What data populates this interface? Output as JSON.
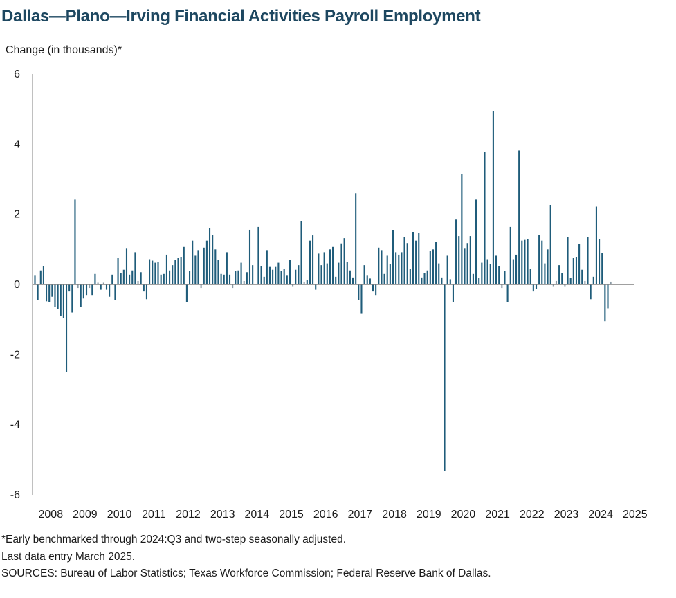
{
  "title": "Dallas—Plano—Irving Financial Activities Payroll Employment",
  "notes": [
    "*Early benchmarked through 2024:Q3 and two-step seasonally adjusted.",
    "Last data entry March 2025.",
    "SOURCES: Bureau of Labor Statistics; Texas Workforce Commission; Federal Reserve Bank of Dallas."
  ],
  "colors": {
    "bar": "#1f5c7a",
    "bar_light": "#8a9aa5",
    "axis": "#808080",
    "title": "#1d4760"
  },
  "chart_data": {
    "type": "bar",
    "title": "Dallas—Plano—Irving Financial Activities Payroll Employment",
    "ylabel": "Change (in thousands)*",
    "xlabel": "",
    "ylim": [
      -6,
      6
    ],
    "yticks": [
      6,
      4,
      2,
      0,
      -2,
      -4,
      -6
    ],
    "ytick_labels": [
      "6",
      "4",
      "2",
      "0",
      "-2",
      "-4",
      "-6"
    ],
    "start": "2008-01",
    "end": "2025-03",
    "year_labels": [
      "2008",
      "2009",
      "2010",
      "2011",
      "2012",
      "2013",
      "2014",
      "2015",
      "2016",
      "2017",
      "2018",
      "2019",
      "2020",
      "2021",
      "2022",
      "2023",
      "2024",
      "2025"
    ],
    "grid": false,
    "legend": "none",
    "values": [
      0.25,
      -0.45,
      0.4,
      0.52,
      -0.48,
      -0.5,
      -0.35,
      -0.65,
      -0.7,
      -0.9,
      -0.95,
      -2.5,
      -0.2,
      -0.8,
      2.42,
      -0.1,
      -0.65,
      -0.4,
      -0.3,
      -0.1,
      -0.3,
      0.3,
      0.05,
      -0.15,
      0.05,
      -0.15,
      -0.35,
      0.28,
      -0.45,
      0.75,
      0.32,
      0.42,
      1.02,
      0.28,
      0.4,
      0.92,
      0.1,
      0.35,
      -0.2,
      -0.42,
      0.72,
      0.68,
      0.62,
      0.65,
      0.28,
      0.3,
      0.85,
      0.4,
      0.55,
      0.7,
      0.75,
      0.78,
      1.07,
      -0.5,
      0.38,
      1.25,
      0.82,
      0.98,
      -0.1,
      1.05,
      1.25,
      1.6,
      1.42,
      1.0,
      0.7,
      0.3,
      0.28,
      0.92,
      0.28,
      -0.1,
      0.38,
      0.4,
      0.62,
      0.1,
      0.35,
      1.56,
      0.55,
      0.02,
      1.64,
      0.52,
      0.22,
      0.98,
      0.5,
      0.42,
      0.5,
      0.62,
      0.38,
      0.45,
      0.25,
      0.7,
      -0.05,
      0.42,
      0.55,
      1.8,
      0.08,
      0.12,
      1.25,
      1.4,
      -0.15,
      0.88,
      0.55,
      0.92,
      0.6,
      1.0,
      1.07,
      0.22,
      0.62,
      1.17,
      1.32,
      0.65,
      0.4,
      0.2,
      2.6,
      -0.45,
      -0.82,
      0.55,
      0.25,
      0.17,
      -0.2,
      -0.3,
      1.05,
      0.98,
      0.3,
      0.82,
      0.58,
      1.55,
      0.92,
      0.85,
      0.92,
      1.35,
      1.18,
      0.45,
      1.5,
      1.25,
      1.48,
      0.2,
      0.32,
      0.4,
      0.95,
      1.0,
      1.22,
      0.6,
      0.2,
      -5.32,
      0.82,
      0.15,
      -0.5,
      1.85,
      1.38,
      3.15,
      1.02,
      1.18,
      1.38,
      0.3,
      2.42,
      0.18,
      0.62,
      3.78,
      0.72,
      0.58,
      4.95,
      0.82,
      0.52,
      -0.1,
      0.38,
      -0.5,
      1.64,
      0.72,
      0.85,
      3.82,
      1.25,
      1.27,
      1.3,
      0.45,
      -0.2,
      -0.12,
      1.42,
      1.25,
      0.6,
      1.0,
      2.27,
      -0.05,
      0.1,
      0.55,
      0.32,
      -0.05,
      1.35,
      0.18,
      0.75,
      0.77,
      1.15,
      0.42,
      0.1,
      1.35,
      -0.42,
      0.22,
      2.22,
      1.3,
      0.9,
      -1.05,
      -0.68,
      0.08
    ]
  }
}
